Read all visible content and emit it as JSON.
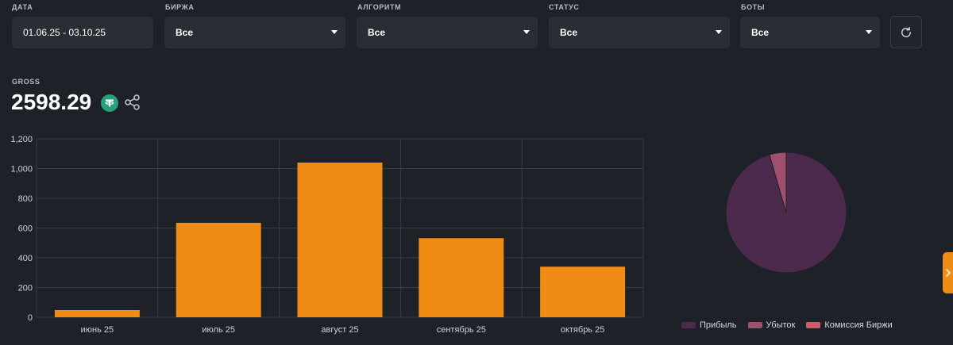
{
  "filters": {
    "date": {
      "label": "ДАТА",
      "value": "01.06.25 - 03.10.25"
    },
    "exchange": {
      "label": "БИРЖА",
      "value": "Все"
    },
    "algorithm": {
      "label": "АЛГОРИТМ",
      "value": "Все"
    },
    "status": {
      "label": "СТАТУС",
      "value": "Все"
    },
    "bots": {
      "label": "БОТЫ",
      "value": "Все"
    }
  },
  "gross": {
    "label": "GROSS",
    "value": "2598.29"
  },
  "icons": {
    "refresh": "refresh-icon",
    "tether": "tether-icon",
    "share": "share-icon",
    "side_tab": "chevron-right-icon"
  },
  "colors": {
    "bar": "#f08c14",
    "profit": "#4b2a4d",
    "loss": "#a0506e",
    "fee": "#c8606a"
  },
  "chart_data": [
    {
      "type": "bar",
      "categories": [
        "июнь 25",
        "июль 25",
        "август 25",
        "сентябрь 25",
        "октябрь 25"
      ],
      "values": [
        48,
        635,
        1040,
        532,
        340
      ],
      "yticks": [
        "0",
        "200",
        "400",
        "600",
        "800",
        "1,000",
        "1,200"
      ],
      "ylim": [
        0,
        1200
      ],
      "grid": true
    },
    {
      "type": "pie",
      "series": [
        {
          "name": "Прибыль",
          "value": 95.5
        },
        {
          "name": "Убыток",
          "value": 4.5
        },
        {
          "name": "Комиссия Биржи",
          "value": 0
        }
      ],
      "legend": "bottom"
    }
  ]
}
